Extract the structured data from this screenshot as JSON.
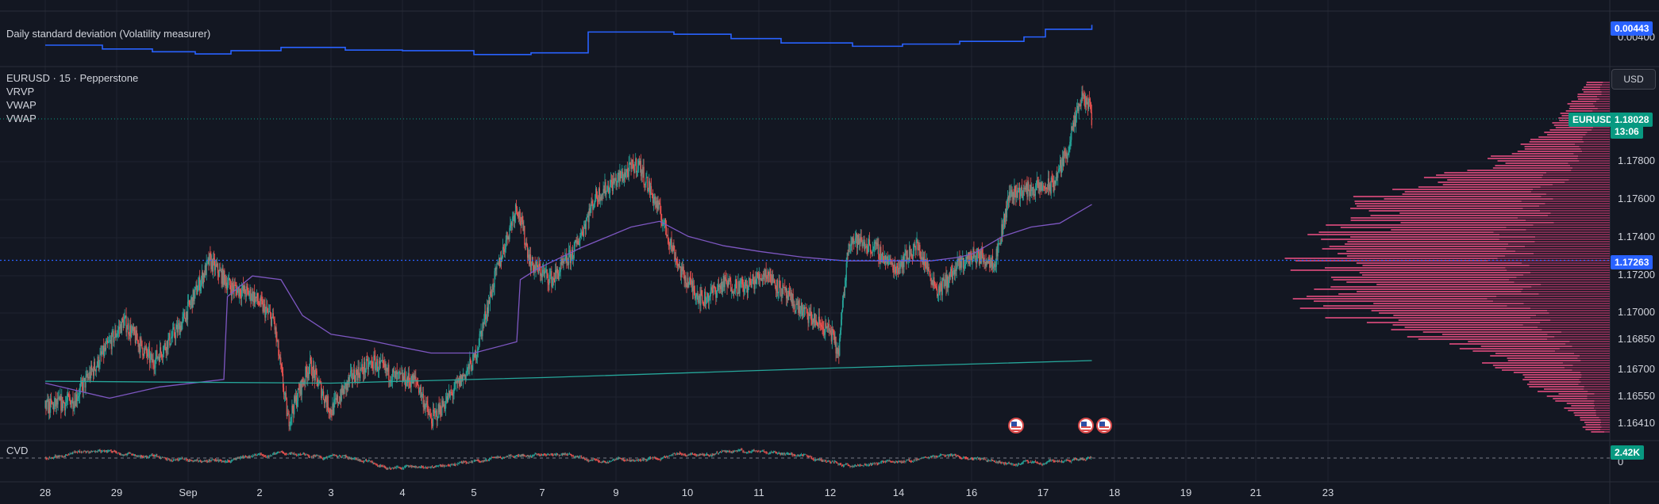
{
  "header": {
    "indicator_top": "Daily standard deviation (Volatility measurer)",
    "symbol_line": "EURUSD · 15 · Pepperstone",
    "studies": [
      "VRVP",
      "VWAP",
      "VWAP"
    ],
    "cvd_label": "CVD",
    "currency_button": "USD"
  },
  "price_axis": {
    "ticks": [
      "1.17800",
      "1.17600",
      "1.17400",
      "1.17200",
      "1.17000",
      "1.16850",
      "1.16700",
      "1.16550",
      "1.16410"
    ],
    "last_price": "1.18028",
    "countdown": "13:06",
    "symbol_tag": "EURUSD",
    "poc_price": "1.17263",
    "stdev_value": "0.00443",
    "stdev_tick": "0.00400",
    "cvd_value": "2.42K",
    "cvd_zero": "0"
  },
  "time_axis": [
    "28",
    "29",
    "Sep",
    "2",
    "3",
    "4",
    "5",
    "7",
    "9",
    "10",
    "11",
    "12",
    "14",
    "16",
    "17",
    "18",
    "19",
    "21",
    "23"
  ],
  "colors": {
    "background": "#131722",
    "up": "#26a69a",
    "down": "#ef5350",
    "vwap_session": "#7e57c2",
    "vwap_anchored": "#26a69a",
    "stdev_line": "#2962ff",
    "volume_profile": "#d84a7a",
    "price_tag": "#089981",
    "poc_tag": "#2962ff"
  },
  "chart_data": {
    "type": "line",
    "symbol": "EURUSD",
    "interval": "15",
    "source": "Pepperstone",
    "ylim": [
      1.1634,
      1.1822
    ],
    "x": [
      "Aug 28",
      "Aug 29",
      "Sep 1",
      "Sep 2",
      "Sep 3",
      "Sep 4",
      "Sep 5",
      "Sep 7",
      "Sep 9",
      "Sep 10",
      "Sep 11",
      "Sep 12",
      "Sep 14",
      "Sep 16"
    ],
    "price_path": [
      [
        0,
        1.1648
      ],
      [
        0.4,
        1.1652
      ],
      [
        0.8,
        1.1676
      ],
      [
        1.1,
        1.1694
      ],
      [
        1.5,
        1.1672
      ],
      [
        1.9,
        1.1692
      ],
      [
        2.3,
        1.1726
      ],
      [
        2.6,
        1.1712
      ],
      [
        2.9,
        1.1708
      ],
      [
        3.2,
        1.1694
      ],
      [
        3.4,
        1.1641
      ],
      [
        3.7,
        1.1671
      ],
      [
        4.0,
        1.1646
      ],
      [
        4.3,
        1.1665
      ],
      [
        4.6,
        1.1672
      ],
      [
        4.9,
        1.1664
      ],
      [
        5.2,
        1.1662
      ],
      [
        5.4,
        1.1641
      ],
      [
        5.7,
        1.1656
      ],
      [
        6.0,
        1.1673
      ],
      [
        6.3,
        1.1718
      ],
      [
        6.6,
        1.1756
      ],
      [
        6.8,
        1.1724
      ],
      [
        7.1,
        1.1716
      ],
      [
        7.4,
        1.1731
      ],
      [
        7.7,
        1.176
      ],
      [
        8.0,
        1.1769
      ],
      [
        8.3,
        1.1778
      ],
      [
        8.6,
        1.1752
      ],
      [
        8.9,
        1.172
      ],
      [
        9.2,
        1.1705
      ],
      [
        9.5,
        1.1714
      ],
      [
        9.8,
        1.1712
      ],
      [
        10.1,
        1.172
      ],
      [
        10.4,
        1.1706
      ],
      [
        10.7,
        1.1696
      ],
      [
        11.0,
        1.1688
      ],
      [
        11.1,
        1.1676
      ],
      [
        11.25,
        1.1738
      ],
      [
        11.6,
        1.1733
      ],
      [
        11.9,
        1.1722
      ],
      [
        12.2,
        1.1734
      ],
      [
        12.5,
        1.171
      ],
      [
        12.8,
        1.1724
      ],
      [
        13.0,
        1.1729
      ],
      [
        13.3,
        1.1726
      ],
      [
        13.5,
        1.1762
      ],
      [
        13.8,
        1.1764
      ],
      [
        14.1,
        1.1766
      ],
      [
        14.3,
        1.1784
      ],
      [
        14.5,
        1.1812
      ],
      [
        14.6,
        1.181
      ],
      [
        14.65,
        1.1802
      ]
    ],
    "series": [
      {
        "name": "VWAP",
        "points": [
          [
            0,
            1.1661
          ],
          [
            0.9,
            1.1653
          ],
          [
            1.6,
            1.1659
          ],
          [
            2.5,
            1.1663
          ],
          [
            2.55,
            1.1707
          ],
          [
            2.9,
            1.1718
          ],
          [
            3.3,
            1.1716
          ],
          [
            3.6,
            1.1697
          ],
          [
            4.0,
            1.1687
          ],
          [
            4.5,
            1.1684
          ],
          [
            5.0,
            1.168
          ],
          [
            5.4,
            1.1677
          ],
          [
            6.0,
            1.1677
          ],
          [
            6.6,
            1.1683
          ],
          [
            6.65,
            1.1716
          ],
          [
            6.9,
            1.1722
          ],
          [
            7.5,
            1.1733
          ],
          [
            8.2,
            1.1744
          ],
          [
            8.6,
            1.1747
          ],
          [
            9.0,
            1.1739
          ],
          [
            9.5,
            1.1734
          ],
          [
            10.0,
            1.1731
          ],
          [
            10.6,
            1.1728
          ],
          [
            11.2,
            1.1726
          ],
          [
            11.6,
            1.1726
          ],
          [
            12.4,
            1.1726
          ],
          [
            12.8,
            1.1728
          ],
          [
            13.0,
            1.173
          ],
          [
            13.4,
            1.1739
          ],
          [
            13.8,
            1.1744
          ],
          [
            14.2,
            1.1746
          ],
          [
            14.65,
            1.1756
          ]
        ]
      },
      {
        "name": "VWAP",
        "points": [
          [
            0,
            1.1662
          ],
          [
            4.0,
            1.1661
          ],
          [
            7.0,
            1.1664
          ],
          [
            11.0,
            1.1669
          ],
          [
            14.65,
            1.1673
          ]
        ]
      }
    ],
    "stdev": {
      "label": "Daily standard deviation (Volatility measurer)",
      "last": 0.00443,
      "steps": [
        [
          0,
          0.00406
        ],
        [
          0.8,
          0.00399
        ],
        [
          1.5,
          0.00394
        ],
        [
          2.1,
          0.0039
        ],
        [
          2.6,
          0.00396
        ],
        [
          3.3,
          0.00402
        ],
        [
          4.2,
          0.00397
        ],
        [
          5.0,
          0.00396
        ],
        [
          6.0,
          0.00389
        ],
        [
          6.8,
          0.00392
        ],
        [
          7.6,
          0.0043
        ],
        [
          8.8,
          0.00426
        ],
        [
          9.6,
          0.00418
        ],
        [
          10.3,
          0.0041
        ],
        [
          11.3,
          0.00404
        ],
        [
          12.0,
          0.00408
        ],
        [
          12.8,
          0.00413
        ],
        [
          13.7,
          0.00421
        ],
        [
          14.0,
          0.00435
        ],
        [
          14.65,
          0.00443
        ]
      ]
    },
    "volume_profile_peak_price": 1.17263,
    "cvd_last": "2.42K"
  }
}
